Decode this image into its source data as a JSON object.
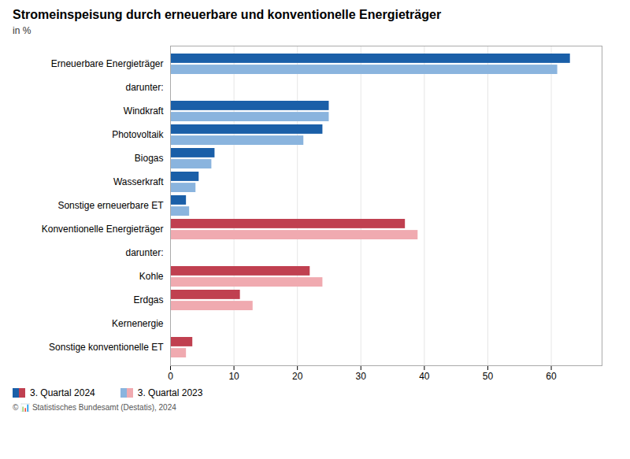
{
  "chart_data": {
    "type": "bar",
    "orientation": "horizontal",
    "title": "Stromeinspeisung durch erneuerbare und konventionelle Energieträger",
    "subtitle": "in %",
    "caption": "© 📊 Statistisches Bundesamt (Destatis), 2024",
    "categories": [
      "Erneuerbare Energieträger",
      "darunter:",
      "Windkraft",
      "Photovoltaik",
      "Biogas",
      "Wasserkraft",
      "Sonstige erneuerbare ET",
      "Konventionelle Energieträger",
      "darunter:",
      "Kohle",
      "Erdgas",
      "Kernenergie",
      "Sonstige konventionelle ET"
    ],
    "series": [
      {
        "name": "3. Quartal 2024",
        "values": [
          63,
          null,
          25,
          24,
          7,
          4.5,
          2.5,
          37,
          null,
          22,
          11,
          null,
          3.5
        ],
        "colors": [
          "#1a5fa8",
          "#1a5fa8",
          "#1a5fa8",
          "#1a5fa8",
          "#1a5fa8",
          "#1a5fa8",
          "#1a5fa8",
          "#c04050",
          "#c04050",
          "#c04050",
          "#c04050",
          "#c04050",
          "#c04050"
        ]
      },
      {
        "name": "3. Quartal 2023",
        "values": [
          61,
          null,
          25,
          21,
          6.5,
          4,
          3,
          39,
          null,
          24,
          13,
          null,
          2.5
        ],
        "colors": [
          "#8ab4de",
          "#8ab4de",
          "#8ab4de",
          "#8ab4de",
          "#8ab4de",
          "#8ab4de",
          "#8ab4de",
          "#f0aab0",
          "#f0aab0",
          "#f0aab0",
          "#f0aab0",
          "#f0aab0",
          "#f0aab0"
        ]
      }
    ],
    "xlim": [
      0,
      68
    ],
    "xticks": [
      0,
      10,
      20,
      30,
      40,
      50,
      60
    ],
    "grid": true,
    "legend": "lower left"
  }
}
